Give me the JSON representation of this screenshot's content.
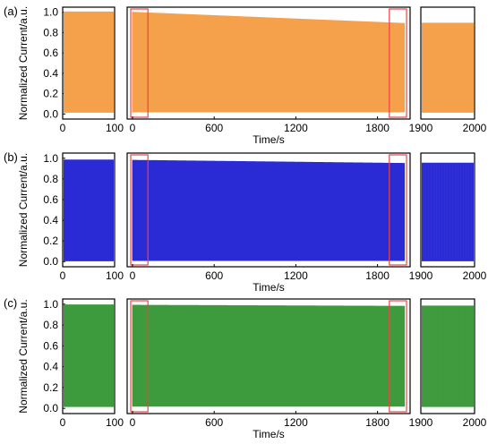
{
  "ylabel": "Normalized Current/a.u.",
  "xlabel": "Time/s",
  "chart_data": [
    {
      "type": "line",
      "panel": "(a)",
      "color": "#f5a04a",
      "cycles": 20,
      "start_peak": 1.0,
      "end_peak": 0.89,
      "baseline": 0.02,
      "left_inset": {
        "xlim": [
          0,
          100
        ],
        "xticks": [
          0,
          100
        ],
        "peak": 1.0
      },
      "main": {
        "xlim": [
          0,
          2000
        ],
        "xticks": [
          0,
          600,
          1200,
          1800
        ]
      },
      "right_inset": {
        "xlim": [
          1900,
          2000
        ],
        "xticks": [
          1900,
          2000
        ],
        "peak": 0.89
      },
      "ylim": [
        -0.05,
        1.05
      ],
      "yticks": [
        0.0,
        0.2,
        0.4,
        0.6,
        0.8,
        1.0
      ],
      "highlight_windows": [
        [
          0,
          100
        ],
        [
          1900,
          2000
        ]
      ]
    },
    {
      "type": "line",
      "panel": "(b)",
      "color": "#2b2bd6",
      "cycles": 20,
      "start_peak": 0.98,
      "end_peak": 0.95,
      "baseline": 0.01,
      "left_inset": {
        "xlim": [
          0,
          100
        ],
        "xticks": [
          0,
          100
        ],
        "peak": 0.98
      },
      "main": {
        "xlim": [
          0,
          2000
        ],
        "xticks": [
          0,
          600,
          1200,
          1800
        ]
      },
      "right_inset": {
        "xlim": [
          1900,
          2000
        ],
        "xticks": [
          1900,
          2000
        ],
        "peak": 0.95
      },
      "ylim": [
        -0.05,
        1.05
      ],
      "yticks": [
        0.0,
        0.2,
        0.4,
        0.6,
        0.8,
        1.0
      ],
      "highlight_windows": [
        [
          0,
          100
        ],
        [
          1900,
          2000
        ]
      ]
    },
    {
      "type": "line",
      "panel": "(c)",
      "color": "#3d9a3d",
      "cycles": 20,
      "start_peak": 0.99,
      "end_peak": 0.98,
      "baseline": 0.02,
      "left_inset": {
        "xlim": [
          0,
          100
        ],
        "xticks": [
          0,
          100
        ],
        "peak": 0.99
      },
      "main": {
        "xlim": [
          0,
          2000
        ],
        "xticks": [
          0,
          600,
          1200,
          1800
        ]
      },
      "right_inset": {
        "xlim": [
          1900,
          2000
        ],
        "xticks": [
          1900,
          2000
        ],
        "peak": 0.98
      },
      "ylim": [
        -0.05,
        1.05
      ],
      "yticks": [
        0.0,
        0.2,
        0.4,
        0.6,
        0.8,
        1.0
      ],
      "highlight_windows": [
        [
          0,
          100
        ],
        [
          1900,
          2000
        ]
      ]
    }
  ]
}
